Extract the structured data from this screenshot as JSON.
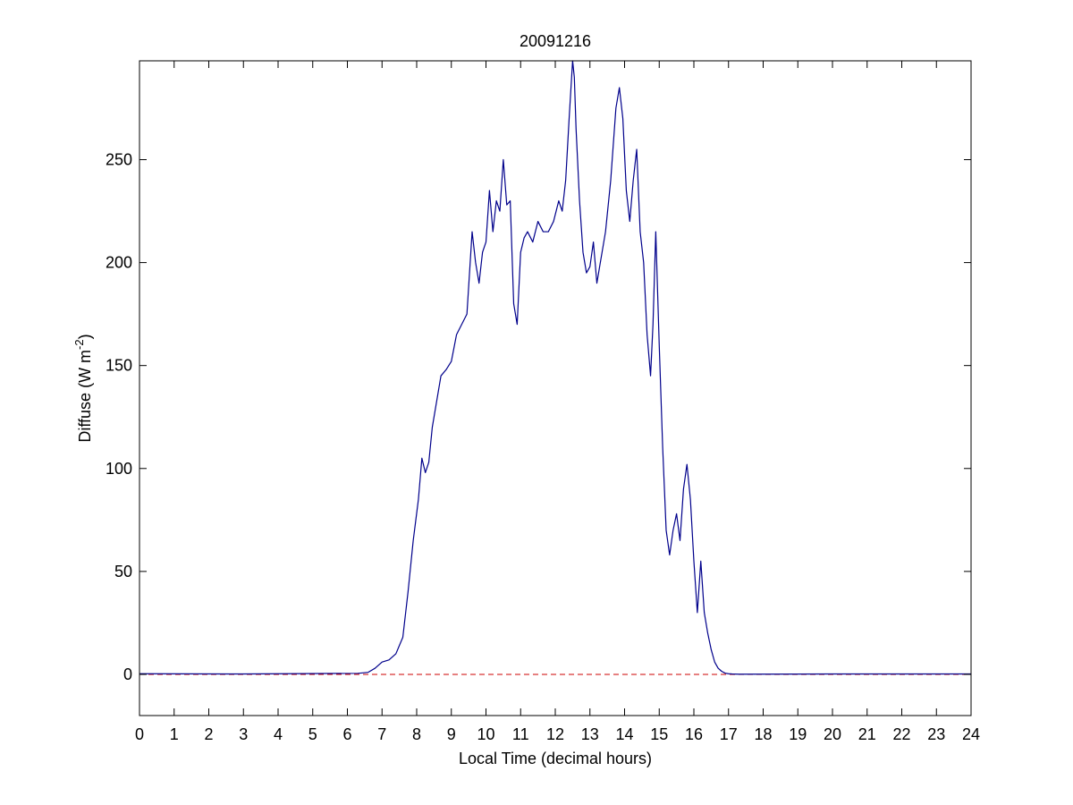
{
  "chart_data": {
    "type": "line",
    "title": "20091216",
    "xlabel": "Local Time (decimal hours)",
    "ylabel_main": "Diffuse (W m",
    "ylabel_sup": "-2",
    "ylabel_close": ")",
    "xlim": [
      0,
      24
    ],
    "ylim": [
      -20,
      298
    ],
    "xticks": [
      0,
      1,
      2,
      3,
      4,
      5,
      6,
      7,
      8,
      9,
      10,
      11,
      12,
      13,
      14,
      15,
      16,
      17,
      18,
      19,
      20,
      21,
      22,
      23,
      24
    ],
    "yticks": [
      0,
      50,
      100,
      150,
      200,
      250
    ],
    "grid": false,
    "colors": {
      "series": "#00008b",
      "reference": "#cc0000",
      "axes": "#000000"
    },
    "reference_line": {
      "y": 0,
      "style": "dashed"
    },
    "series": [
      {
        "x": [
          0,
          3,
          6.3,
          6.6,
          6.8,
          7.0,
          7.2,
          7.4,
          7.6,
          7.75,
          7.9,
          8.05,
          8.15,
          8.25,
          8.35,
          8.45,
          8.55,
          8.7,
          8.85,
          9.0,
          9.15,
          9.3,
          9.45,
          9.6,
          9.7,
          9.8,
          9.9,
          10.0,
          10.1,
          10.2,
          10.3,
          10.4,
          10.5,
          10.6,
          10.7,
          10.8,
          10.9,
          11.0,
          11.1,
          11.2,
          11.35,
          11.5,
          11.65,
          11.8,
          11.95,
          12.1,
          12.2,
          12.3,
          12.4,
          12.5,
          12.55,
          12.6,
          12.7,
          12.8,
          12.9,
          13.0,
          13.1,
          13.2,
          13.3,
          13.45,
          13.6,
          13.75,
          13.85,
          13.95,
          14.05,
          14.15,
          14.25,
          14.35,
          14.45,
          14.55,
          14.65,
          14.75,
          14.82,
          14.9,
          15.0,
          15.1,
          15.2,
          15.3,
          15.4,
          15.5,
          15.6,
          15.7,
          15.8,
          15.9,
          16.0,
          16.1,
          16.2,
          16.3,
          16.4,
          16.5,
          16.6,
          16.7,
          16.8,
          16.9,
          17.0,
          17.1,
          17.3,
          20,
          24
        ],
        "y": [
          0.3,
          0.2,
          0.5,
          1,
          3,
          6,
          7,
          10,
          18,
          40,
          65,
          85,
          105,
          98,
          103,
          120,
          130,
          145,
          148,
          152,
          165,
          170,
          175,
          215,
          200,
          190,
          205,
          210,
          235,
          215,
          230,
          225,
          250,
          228,
          230,
          180,
          170,
          205,
          212,
          215,
          210,
          220,
          215,
          215,
          220,
          230,
          225,
          240,
          270,
          298,
          290,
          265,
          230,
          205,
          195,
          198,
          210,
          190,
          200,
          215,
          240,
          275,
          285,
          270,
          235,
          220,
          240,
          255,
          215,
          200,
          165,
          145,
          170,
          215,
          160,
          110,
          70,
          58,
          70,
          78,
          65,
          90,
          102,
          85,
          55,
          30,
          55,
          30,
          20,
          12,
          6,
          3,
          1.5,
          0.6,
          0.3,
          0.2,
          0.1,
          0.2,
          0.2
        ]
      }
    ]
  }
}
